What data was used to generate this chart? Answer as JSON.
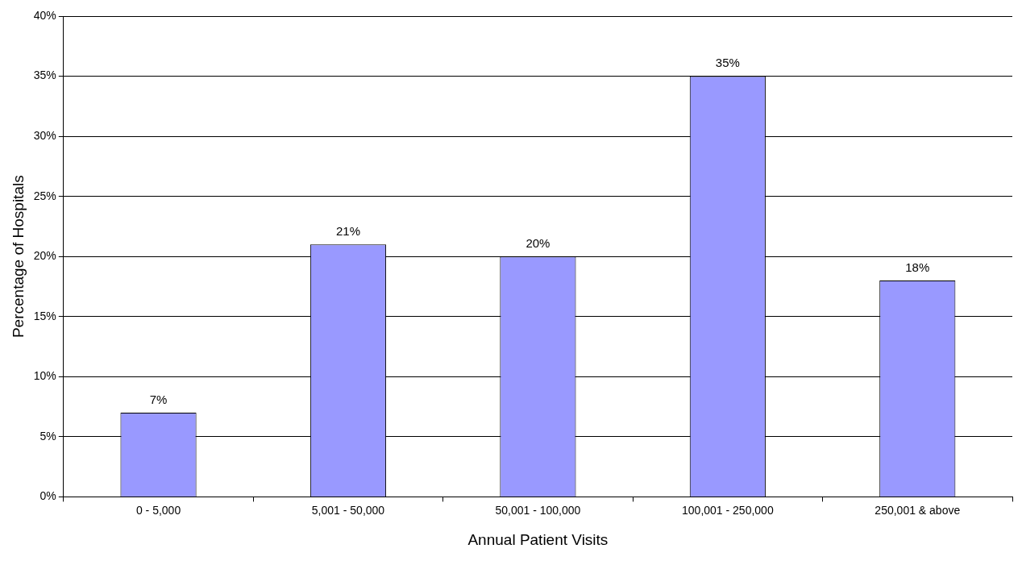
{
  "chart_data": {
    "type": "bar",
    "xlabel": "Annual Patient Visits",
    "ylabel": "Percentage of Hospitals",
    "categories": [
      "0 - 5,000",
      "5,001 - 50,000",
      "50,001 - 100,000",
      "100,001 - 250,000",
      "250,001 & above"
    ],
    "values": [
      7,
      21,
      20,
      35,
      18
    ],
    "value_labels": [
      "7%",
      "21%",
      "20%",
      "35%",
      "18%"
    ],
    "color": "#9999ff",
    "ylim": [
      0,
      40
    ],
    "yticks": [
      {
        "value": 0,
        "label": "0%"
      },
      {
        "value": 5,
        "label": "5%"
      },
      {
        "value": 10,
        "label": "10%"
      },
      {
        "value": 15,
        "label": "15%"
      },
      {
        "value": 20,
        "label": "20%"
      },
      {
        "value": 25,
        "label": "25%"
      },
      {
        "value": 30,
        "label": "30%"
      },
      {
        "value": 35,
        "label": "35%"
      },
      {
        "value": 40,
        "label": "40%"
      }
    ],
    "grid": "y"
  }
}
